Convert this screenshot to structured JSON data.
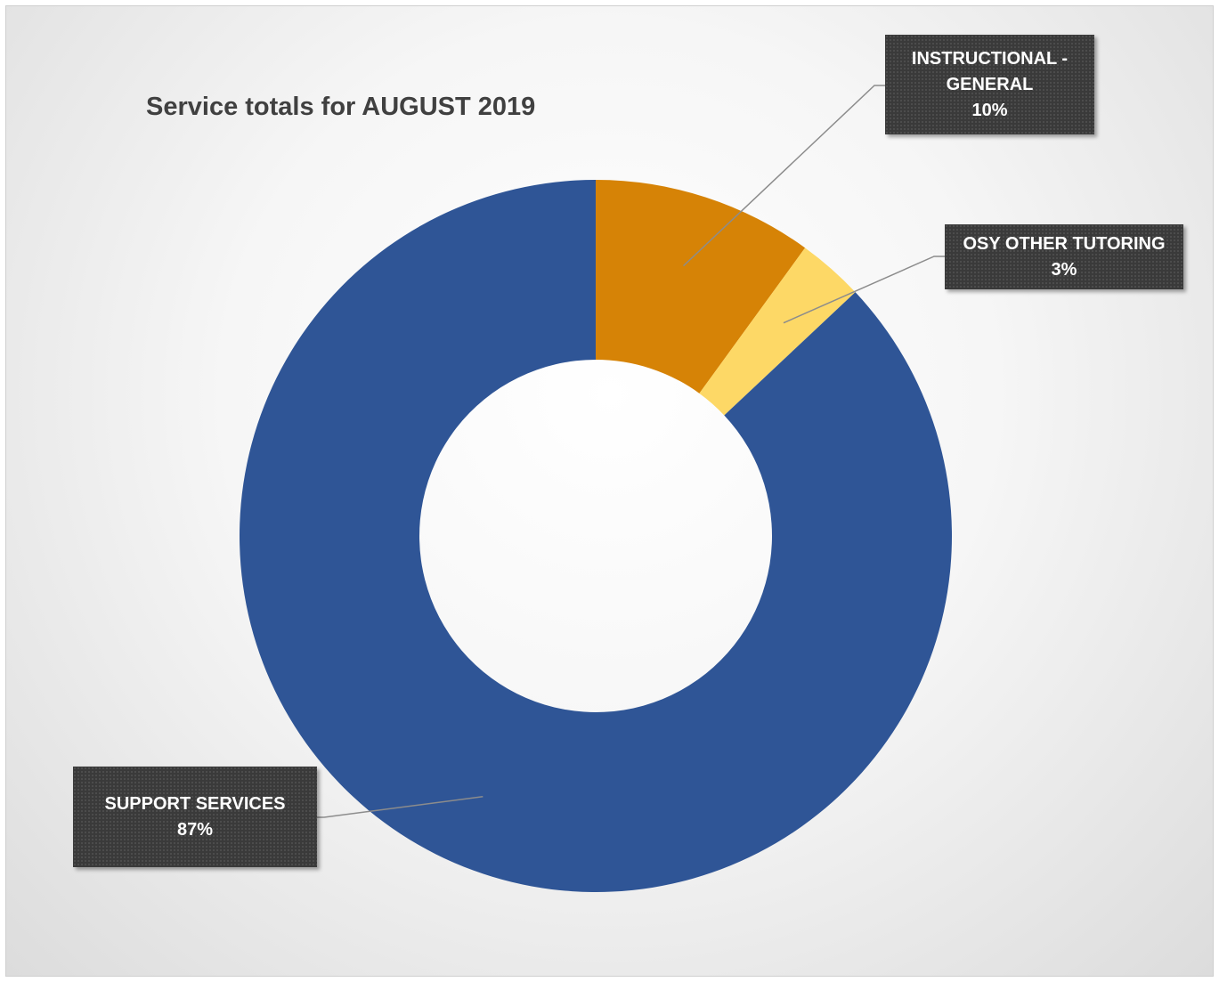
{
  "chart_data": {
    "type": "pie",
    "title": "Service totals for AUGUST 2019",
    "categories": [
      "INSTRUCTIONAL - GENERAL",
      "OSY OTHER TUTORING",
      "SUPPORT SERVICES"
    ],
    "values": [
      10,
      3,
      87
    ],
    "value_labels": [
      "10%",
      "3%",
      "87%"
    ],
    "colors": [
      "#D68306",
      "#FDD866",
      "#2F5596"
    ],
    "label_box_color": "#3A3A3A"
  }
}
